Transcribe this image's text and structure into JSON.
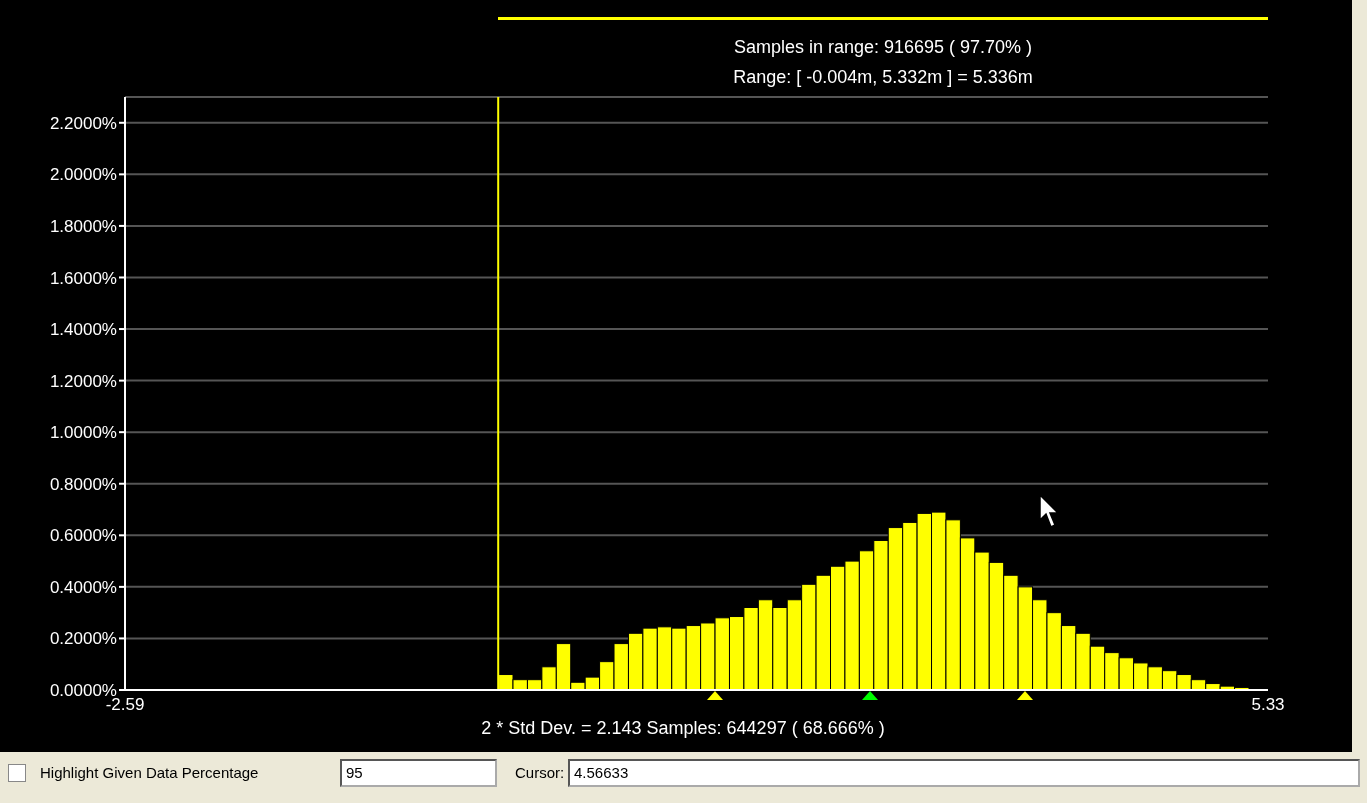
{
  "chart_data": {
    "type": "histogram",
    "title": "Samples in range: 916695 ( 97.70% )",
    "subtitle": "Range: [ -0.004m, 5.332m ] = 5.336m",
    "xlabel": "2 * Std Dev. = 2.143 Samples: 644297 ( 68.666% )",
    "bins": [
      0,
      0.1,
      0.2,
      0.3,
      0.4,
      0.5,
      0.6,
      0.7,
      0.8,
      0.9,
      1,
      1.1,
      1.2,
      1.3,
      1.4,
      1.5,
      1.6,
      1.7,
      1.8,
      1.9,
      2,
      2.1,
      2.2,
      2.3,
      2.4,
      2.5,
      2.6,
      2.7,
      2.8,
      2.9,
      3,
      3.1,
      3.2,
      3.3,
      3.4,
      3.5,
      3.6,
      3.7,
      3.8,
      3.9,
      4,
      4.1,
      4.2,
      4.3,
      4.4,
      4.5,
      4.6,
      4.7,
      4.8,
      4.9,
      5,
      5.1,
      5.2
    ],
    "values": [
      0.06,
      0.04,
      0.04,
      0.09,
      0.18,
      0.03,
      0.05,
      0.11,
      0.18,
      0.22,
      0.24,
      0.245,
      0.24,
      0.25,
      0.26,
      0.28,
      0.285,
      0.32,
      0.35,
      0.32,
      0.35,
      0.41,
      0.445,
      0.48,
      0.5,
      0.54,
      0.58,
      0.63,
      0.65,
      0.685,
      0.69,
      0.66,
      0.59,
      0.535,
      0.495,
      0.445,
      0.4,
      0.35,
      0.3,
      0.25,
      0.22,
      0.17,
      0.145,
      0.125,
      0.105,
      0.09,
      0.075,
      0.06,
      0.04,
      0.025,
      0.015,
      0.01
    ],
    "color": "#ffff00",
    "xlim": [
      -2.59,
      5.33
    ],
    "xticks": [
      -2.59,
      5.33
    ],
    "ylim": [
      0,
      2.3
    ],
    "yticks": [
      {
        "value": 0,
        "label": "0.0000%"
      },
      {
        "value": 0.2,
        "label": "0.2000%"
      },
      {
        "value": 0.4,
        "label": "0.4000%"
      },
      {
        "value": 0.6,
        "label": "0.6000%"
      },
      {
        "value": 0.8,
        "label": "0.8000%"
      },
      {
        "value": 1,
        "label": "1.0000%"
      },
      {
        "value": 1.2,
        "label": "1.2000%"
      },
      {
        "value": 1.4,
        "label": "1.4000%"
      },
      {
        "value": 1.6,
        "label": "1.6000%"
      },
      {
        "value": 1.8,
        "label": "1.8000%"
      },
      {
        "value": 2,
        "label": "2.0000%"
      },
      {
        "value": 2.2,
        "label": "2.2000%"
      }
    ],
    "grid": "y",
    "ref_lines": [
      {
        "axis": "x",
        "value": -0.004,
        "color": "#ffff00"
      }
    ],
    "annotations": [
      "Highlight Given Data Percentage",
      "95",
      "Cursor:",
      "4.56633"
    ]
  }
}
